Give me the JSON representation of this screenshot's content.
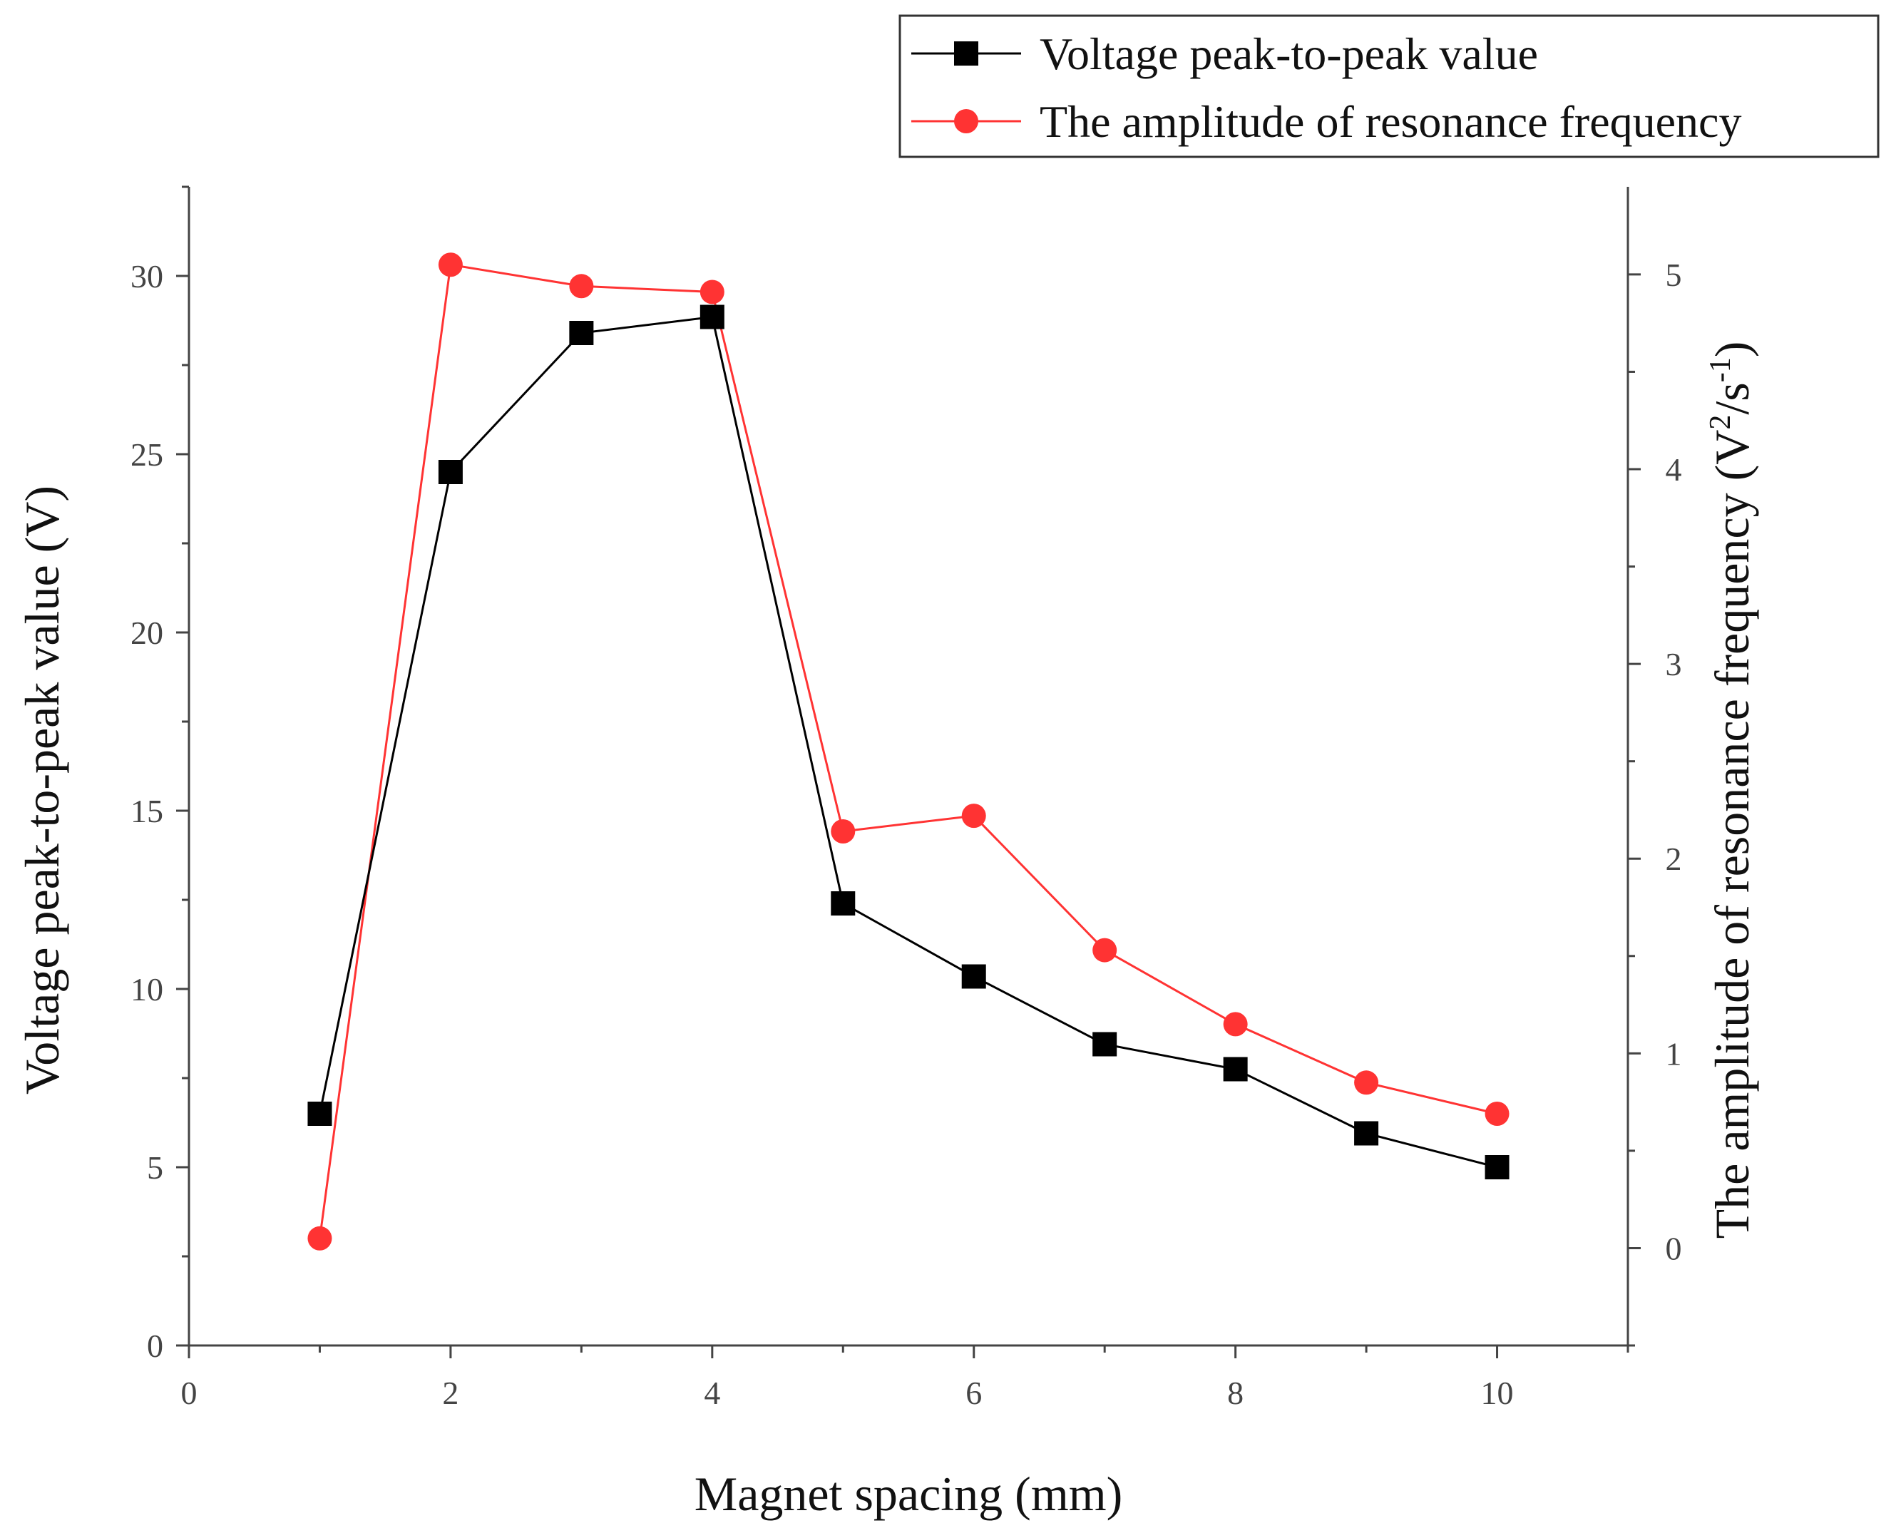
{
  "chart_data": {
    "type": "line",
    "title": "",
    "xlabel": "Magnet spacing (mm)",
    "ylabel_left": "Voltage peak-to-peak value (V)",
    "ylabel_right_main": "The amplitude of resonance frequency (V",
    "ylabel_right_sup1": "2",
    "ylabel_right_mid": "/s",
    "ylabel_right_sup2": "-1",
    "ylabel_right_end": ")",
    "xlim": [
      0,
      11
    ],
    "ylim_left": [
      0,
      32.5
    ],
    "ylim_right": [
      -0.5,
      5.45
    ],
    "x_ticks": [
      0,
      2,
      4,
      6,
      8,
      10
    ],
    "y_left_ticks": [
      0,
      5,
      10,
      15,
      20,
      25,
      30
    ],
    "y_right_ticks": [
      0,
      1,
      2,
      3,
      4,
      5
    ],
    "legend_position": "top-right",
    "x": [
      1,
      2,
      3,
      4,
      5,
      6,
      7,
      8,
      9,
      10
    ],
    "series": [
      {
        "name": "Voltage peak-to-peak value",
        "axis": "left",
        "marker": "square",
        "color": "#000000",
        "values": [
          6.5,
          24.5,
          28.4,
          28.85,
          12.4,
          10.35,
          8.45,
          7.75,
          5.95,
          5.0
        ]
      },
      {
        "name": "The amplitude of resonance frequency",
        "axis": "right",
        "marker": "circle",
        "color": "#ff3333",
        "values": [
          0.05,
          5.05,
          4.94,
          4.91,
          2.14,
          2.22,
          1.53,
          1.15,
          0.85,
          0.69
        ]
      }
    ]
  }
}
